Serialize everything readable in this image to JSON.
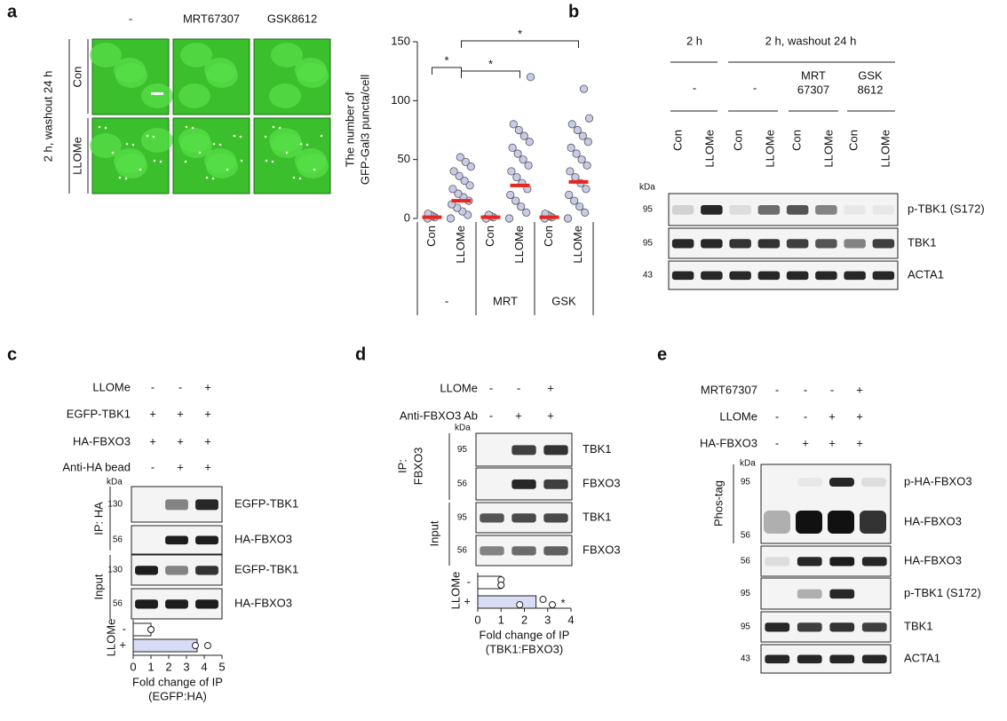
{
  "panel_labels": [
    "a",
    "b",
    "c",
    "d",
    "e"
  ],
  "a": {
    "image_columns": [
      "-",
      "MRT67307",
      "GSK8612"
    ],
    "condition_label": "2 h, washout 24 h",
    "image_rows": [
      "Con",
      "LLOMe"
    ],
    "chart_data": {
      "type": "scatter",
      "y_label": [
        "The number of",
        "GFP-Gal3 puncta/cell"
      ],
      "categories": [
        "Con",
        "LLOMe",
        "Con",
        "LLOMe",
        "Con",
        "LLOMe"
      ],
      "groups": [
        "-",
        "MRT",
        "GSK"
      ],
      "points": [
        [
          0,
          1,
          2,
          3,
          4
        ],
        [
          0,
          3,
          6,
          9,
          12,
          15,
          18,
          21,
          25,
          28,
          32,
          36,
          40,
          44,
          48,
          52
        ],
        [
          0,
          1,
          2,
          3
        ],
        [
          0,
          5,
          10,
          15,
          20,
          25,
          30,
          35,
          40,
          45,
          50,
          55,
          60,
          65,
          70,
          75,
          80,
          120
        ],
        [
          0,
          1,
          2,
          3,
          4
        ],
        [
          0,
          5,
          10,
          15,
          20,
          25,
          30,
          35,
          40,
          45,
          50,
          55,
          60,
          65,
          70,
          75,
          80,
          85,
          110
        ]
      ],
      "medians": [
        1,
        15,
        1,
        28,
        1,
        31
      ],
      "significance": [
        "*",
        "*",
        "*"
      ],
      "ylim": [
        0,
        150
      ],
      "yticks": [
        0,
        50,
        100,
        150
      ],
      "point_color": "#c8cbe8",
      "median_color": "#e8251f"
    }
  },
  "b": {
    "headers": [
      "2 h",
      "2 h, washout 24 h"
    ],
    "treatments": [
      "-",
      "-",
      [
        "MRT",
        "67307"
      ],
      [
        "GSK",
        "8612"
      ]
    ],
    "lanes": [
      "Con",
      "LLOMe",
      "Con",
      "LLOMe",
      "Con",
      "LLOMe",
      "Con",
      "LLOMe"
    ],
    "kda_title": "kDa",
    "blots": [
      {
        "kda": 95,
        "name": "p-TBK1 (S172)"
      },
      {
        "kda": 95,
        "name": "TBK1"
      },
      {
        "kda": 43,
        "name": "ACTA1"
      }
    ]
  },
  "c": {
    "conditions": [
      {
        "name": "LLOMe",
        "signs": [
          "-",
          "-",
          "+"
        ]
      },
      {
        "name": "EGFP-TBK1",
        "signs": [
          "+",
          "+",
          "+"
        ]
      },
      {
        "name": "HA-FBXO3",
        "signs": [
          "+",
          "+",
          "+"
        ]
      },
      {
        "name": "Anti-HA bead",
        "signs": [
          "-",
          "+",
          "+"
        ]
      }
    ],
    "kda_title": "kDa",
    "blocks": [
      {
        "label": "IP: HA",
        "blots": [
          {
            "kda": 130,
            "name": "EGFP-TBK1"
          },
          {
            "kda": 56,
            "name": "HA-FBXO3"
          }
        ]
      },
      {
        "label": "Input",
        "blots": [
          {
            "kda": 130,
            "name": "EGFP-TBK1"
          },
          {
            "kda": 56,
            "name": "HA-FBXO3"
          }
        ]
      }
    ],
    "chart_data": {
      "type": "hbar",
      "y_label": "LLOMe",
      "categories": [
        "-",
        "+"
      ],
      "values": [
        1,
        3.6
      ],
      "points": [
        [
          1,
          1
        ],
        [
          3.5,
          4.2
        ]
      ],
      "xlim": [
        0,
        5
      ],
      "xticks": [
        0,
        1,
        2,
        3,
        4,
        5
      ],
      "x_label": [
        "Fold change of IP",
        "(EGFP:HA)"
      ],
      "colors": [
        "#ffffff",
        "#d9dcf5"
      ]
    }
  },
  "d": {
    "conditions": [
      {
        "name": "LLOMe",
        "signs": [
          "-",
          "-",
          "+"
        ]
      },
      {
        "name": "Anti-FBXO3 Ab",
        "signs": [
          "-",
          "+",
          "+"
        ]
      }
    ],
    "kda_title": "kDa",
    "blocks": [
      {
        "label": [
          "IP:",
          "FBXO3"
        ],
        "blots": [
          {
            "kda": 95,
            "name": "TBK1"
          },
          {
            "kda": 56,
            "name": "FBXO3"
          }
        ]
      },
      {
        "label": "Input",
        "blots": [
          {
            "kda": 95,
            "name": "TBK1"
          },
          {
            "kda": 56,
            "name": "FBXO3"
          }
        ]
      }
    ],
    "chart_data": {
      "type": "hbar",
      "y_label": "LLOMe",
      "categories": [
        "-",
        "+"
      ],
      "values": [
        1,
        2.5
      ],
      "points": [
        [
          1,
          1,
          1
        ],
        [
          1.8,
          2.8,
          3.2
        ]
      ],
      "significance": "*",
      "xlim": [
        0,
        4
      ],
      "xticks": [
        0,
        1,
        2,
        3,
        4
      ],
      "x_label": [
        "Fold change of IP",
        "(TBK1:FBXO3)"
      ],
      "colors": [
        "#ffffff",
        "#d9dcf5"
      ]
    }
  },
  "e": {
    "conditions": [
      {
        "name": "MRT67307",
        "signs": [
          "-",
          "-",
          "-",
          "+"
        ]
      },
      {
        "name": "LLOMe",
        "signs": [
          "-",
          "-",
          "+",
          "+"
        ]
      },
      {
        "name": "HA-FBXO3",
        "signs": [
          "-",
          "+",
          "+",
          "+"
        ]
      }
    ],
    "kda_title": "kDa",
    "phos_label": "Phos-tag",
    "phos_blot": [
      {
        "kda": 95,
        "name": "p-HA-FBXO3"
      },
      {
        "kda": 56,
        "name": "HA-FBXO3"
      }
    ],
    "blots": [
      {
        "kda": 56,
        "name": "HA-FBXO3"
      },
      {
        "kda": 95,
        "name": "p-TBK1 (S172)"
      },
      {
        "kda": 95,
        "name": "TBK1"
      },
      {
        "kda": 43,
        "name": "ACTA1"
      }
    ]
  }
}
